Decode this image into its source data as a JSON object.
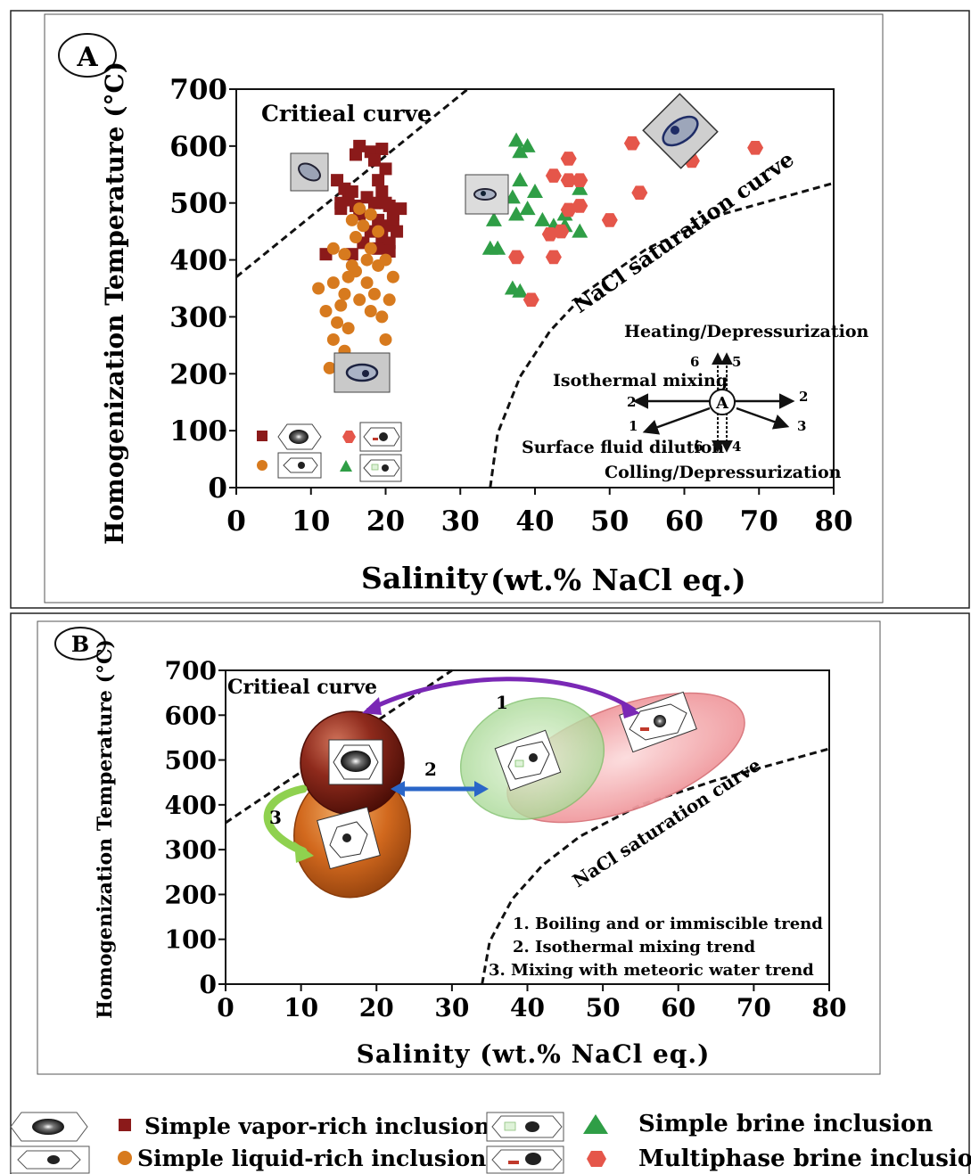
{
  "colors": {
    "vapor": "#8b1a1a",
    "liquid": "#d77a1e",
    "brine": "#2f9e46",
    "multiphase": "#e5564a",
    "vapor_blob": "#8e2a1c",
    "liquid_blob": "#d2691e",
    "brine_blob": "#b9e4a8",
    "multi_blob": "#f3a0a4",
    "purple_arrow": "#7a28b5",
    "blue_arrow": "#2a66c8",
    "green_arrow": "#8fd14f"
  },
  "chart_data": [
    {
      "type": "scatter",
      "panel_label": "A",
      "xlabel_main": "Salinity",
      "xlabel_unit": "(wt.% NaCl eq.)",
      "ylabel": "Homogenization Temperature (°C)",
      "xlim": [
        0,
        80
      ],
      "ylim": [
        0,
        700
      ],
      "xticks": [
        "0",
        "10",
        "20",
        "30",
        "40",
        "50",
        "60",
        "70",
        "80"
      ],
      "yticks": [
        "0",
        "100",
        "200",
        "300",
        "400",
        "500",
        "600",
        "700"
      ],
      "grid": false,
      "legend_placement": "bottom-left",
      "curves": [
        {
          "label": "Critieal curve",
          "points": [
            [
              0,
              370
            ],
            [
              31,
              700
            ]
          ]
        },
        {
          "label": "NaCl saturation curve",
          "points": [
            [
              34,
              0
            ],
            [
              35,
              95
            ],
            [
              38,
              195
            ],
            [
              42,
              275
            ],
            [
              47,
              345
            ],
            [
              55,
              420
            ],
            [
              65,
              480
            ],
            [
              80,
              535
            ]
          ]
        }
      ],
      "series": [
        {
          "name": "Simple vapor-rich inclusion",
          "marker": "square",
          "color_key": "vapor",
          "points": [
            [
              16.5,
              600
            ],
            [
              18,
              590
            ],
            [
              19.5,
              595
            ],
            [
              16,
              585
            ],
            [
              18.5,
              575
            ],
            [
              20,
              560
            ],
            [
              19,
              540
            ],
            [
              13.5,
              540
            ],
            [
              14.5,
              525
            ],
            [
              15,
              505
            ],
            [
              16,
              495
            ],
            [
              17.5,
              510
            ],
            [
              18.5,
              500
            ],
            [
              19.5,
              520
            ],
            [
              20.5,
              495
            ],
            [
              21,
              480
            ],
            [
              22,
              490
            ],
            [
              19,
              470
            ],
            [
              20,
              460
            ],
            [
              21.5,
              450
            ],
            [
              19.5,
              440
            ],
            [
              20.5,
              430
            ],
            [
              19,
              420
            ],
            [
              20.5,
              415
            ],
            [
              12,
              410
            ],
            [
              15.5,
              410
            ],
            [
              17,
              430
            ],
            [
              14,
              490
            ],
            [
              16.5,
              480
            ],
            [
              18,
              450
            ],
            [
              21,
              470
            ],
            [
              20,
              500
            ],
            [
              15.5,
              520
            ],
            [
              14,
              500
            ]
          ]
        },
        {
          "name": "Simple liquid-rich inclusion",
          "marker": "circle",
          "color_key": "liquid",
          "points": [
            [
              16.5,
              490
            ],
            [
              18,
              480
            ],
            [
              15.5,
              470
            ],
            [
              17,
              460
            ],
            [
              19,
              450
            ],
            [
              16,
              440
            ],
            [
              18,
              420
            ],
            [
              13,
              420
            ],
            [
              14.5,
              410
            ],
            [
              17.5,
              400
            ],
            [
              19,
              390
            ],
            [
              16,
              380
            ],
            [
              15,
              370
            ],
            [
              17.5,
              360
            ],
            [
              13,
              360
            ],
            [
              11,
              350
            ],
            [
              14.5,
              340
            ],
            [
              16.5,
              330
            ],
            [
              20.5,
              330
            ],
            [
              18,
              310
            ],
            [
              12,
              310
            ],
            [
              13.5,
              290
            ],
            [
              19.5,
              300
            ],
            [
              15,
              280
            ],
            [
              20,
              260
            ],
            [
              13,
              260
            ],
            [
              14.5,
              240
            ],
            [
              12.5,
              210
            ],
            [
              19.5,
              210
            ],
            [
              15.5,
              390
            ],
            [
              18.5,
              340
            ],
            [
              14,
              320
            ],
            [
              21,
              370
            ],
            [
              20,
              400
            ]
          ]
        },
        {
          "name": "Simple brine inclusion",
          "marker": "triangle",
          "color_key": "brine",
          "points": [
            [
              37.5,
              610
            ],
            [
              39,
              600
            ],
            [
              38,
              590
            ],
            [
              38,
              540
            ],
            [
              40,
              520
            ],
            [
              37,
              510
            ],
            [
              46,
              525
            ],
            [
              39,
              490
            ],
            [
              44,
              480
            ],
            [
              41,
              470
            ],
            [
              37.5,
              480
            ],
            [
              34.5,
              470
            ],
            [
              42.5,
              460
            ],
            [
              44,
              460
            ],
            [
              46,
              450
            ],
            [
              34,
              420
            ],
            [
              35,
              420
            ],
            [
              37,
              350
            ],
            [
              38,
              345
            ]
          ]
        },
        {
          "name": "Multiphase brine inclusion",
          "marker": "hexagon",
          "color_key": "multiphase",
          "points": [
            [
              53,
              605
            ],
            [
              69.5,
              597
            ],
            [
              61,
              574
            ],
            [
              44.5,
              578
            ],
            [
              42.5,
              548
            ],
            [
              44.5,
              540
            ],
            [
              46,
              540
            ],
            [
              54,
              518
            ],
            [
              44.5,
              488
            ],
            [
              46,
              495
            ],
            [
              50,
              470
            ],
            [
              42,
              445
            ],
            [
              43.5,
              450
            ],
            [
              42.5,
              405
            ],
            [
              37.5,
              405
            ],
            [
              39.5,
              330
            ]
          ]
        }
      ],
      "annotations": {
        "critical_curve_label": "Critieal curve",
        "nacl_label": "NaCl saturation curve",
        "heating": "Heating/Depressurization",
        "isothermal": "Isothermal mixing",
        "surface": "Surface fluid dilution",
        "cooling": "Colling/Depressurization",
        "center": "A",
        "arrow_numbers": {
          "n6_top": "6",
          "n5": "5",
          "n2_left": "2",
          "n2_right": "2",
          "n1": "1",
          "n3": "3",
          "n6_bottom": "6",
          "n4": "4"
        }
      }
    },
    {
      "type": "diagram-chart",
      "panel_label": "B",
      "xlabel": "Salinity (wt.% NaCl eq.)",
      "ylabel": "Homogenization Temperature (°C)",
      "xlim": [
        0,
        80
      ],
      "ylim": [
        0,
        700
      ],
      "xticks": [
        "0",
        "10",
        "20",
        "30",
        "40",
        "50",
        "60",
        "70",
        "80"
      ],
      "yticks": [
        "0",
        "100",
        "200",
        "300",
        "400",
        "500",
        "600",
        "700"
      ],
      "grid": false,
      "curves": [
        {
          "label": "Critieal curve",
          "points": [
            [
              0,
              360
            ],
            [
              30,
              700
            ]
          ]
        },
        {
          "label": "NaCl saturation curve",
          "points": [
            [
              34,
              0
            ],
            [
              35,
              95
            ],
            [
              38,
              190
            ],
            [
              42,
              265
            ],
            [
              47,
              330
            ],
            [
              55,
              400
            ],
            [
              65,
              455
            ],
            [
              80,
              525
            ]
          ]
        }
      ],
      "trend_numbers": {
        "t1": "1",
        "t2": "2",
        "t3": "3"
      },
      "trend_legend": [
        "1. Boiling and or immiscible trend",
        "2. Isothermal mixing trend",
        "3. Mixing with meteoric water trend"
      ]
    }
  ],
  "legend": [
    {
      "label": "Simple vapor-rich inclusion",
      "marker": "square",
      "color_key": "vapor"
    },
    {
      "label": "Simple liquid-rich inclusion",
      "marker": "circle",
      "color_key": "liquid"
    },
    {
      "label": "Simple brine inclusion",
      "marker": "triangle",
      "color_key": "brine"
    },
    {
      "label": "Multiphase brine inclusion",
      "marker": "hexagon",
      "color_key": "multiphase"
    }
  ]
}
